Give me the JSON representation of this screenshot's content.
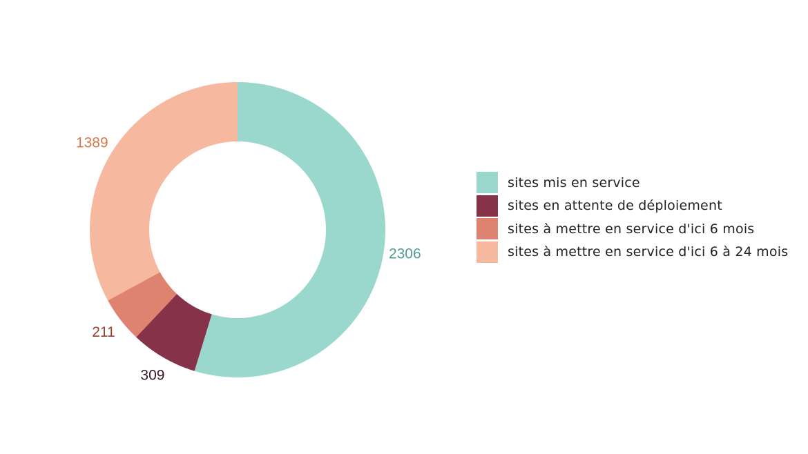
{
  "chart_data": {
    "type": "pie",
    "style": "donut",
    "title": "",
    "categories": [
      "sites mis en service",
      "sites en attente de déploiement",
      "sites à mettre en service d'ici 6 mois",
      "sites à mettre en service d'ici 6 à 24 mois"
    ],
    "values": [
      2306,
      309,
      211,
      1389
    ],
    "value_labels": [
      "2306",
      "309",
      "211",
      "1389"
    ],
    "colors": [
      "#9ad7cc",
      "#86334a",
      "#df8371",
      "#f6b89e"
    ],
    "label_colors": [
      "#4e9e93",
      "#3a1520",
      "#9a3e2c",
      "#d77a50"
    ],
    "start": "top",
    "direction": "clockwise",
    "legend_position": "right"
  }
}
